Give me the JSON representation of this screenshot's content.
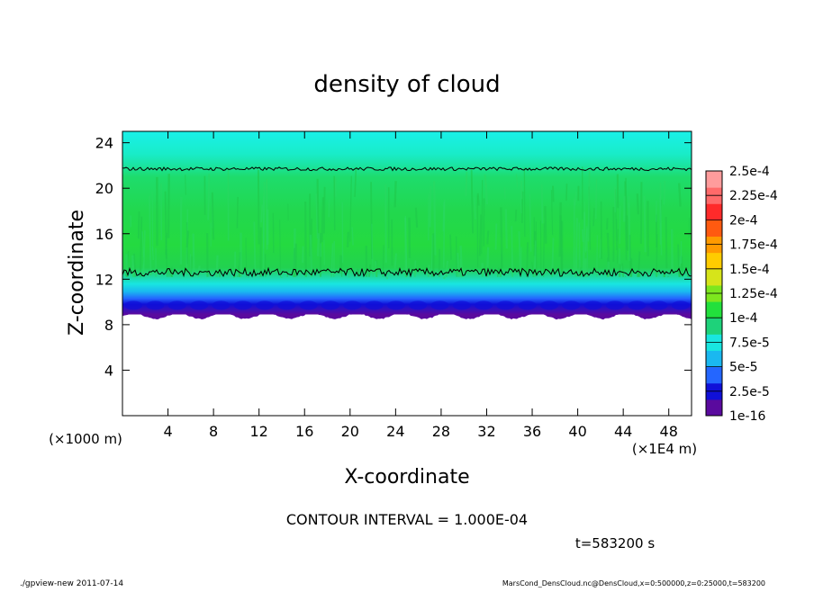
{
  "chart_data": {
    "type": "heatmap",
    "title": "density of cloud",
    "xlabel": "X-coordinate",
    "ylabel": "Z-coordinate",
    "x_unit_left": "(×1000 m)",
    "x_unit_right": "(×1E4 m)",
    "xlim": [
      0,
      50
    ],
    "ylim": [
      0,
      25
    ],
    "xticks": [
      4,
      8,
      12,
      16,
      20,
      24,
      28,
      32,
      36,
      40,
      44,
      48
    ],
    "yticks": [
      4,
      8,
      12,
      16,
      20,
      24
    ],
    "colorbar": {
      "levels": [
        "1e-16",
        "2.5e-5",
        "5e-5",
        "7.5e-5",
        "1e-4",
        "1.25e-4",
        "1.5e-4",
        "1.75e-4",
        "2e-4",
        "2.25e-4",
        "2.5e-4"
      ],
      "colors": [
        "#5a0a9e",
        "#1010d8",
        "#2466ff",
        "#1ab8f0",
        "#19e6e0",
        "#1ed27a",
        "#22e03c",
        "#7de61e",
        "#d6e41a",
        "#ffcc00",
        "#ff9a00",
        "#ff5a10",
        "#ff2a2a",
        "#ff6a6a",
        "#ff9c9c"
      ]
    },
    "profile": [
      {
        "z": 24.8,
        "color": "#19f0e6"
      },
      {
        "z": 23.0,
        "color": "#19ecc8"
      },
      {
        "z": 22.0,
        "color": "#1ae4a0"
      },
      {
        "z": 21.0,
        "color": "#1edc6c"
      },
      {
        "z": 18.0,
        "color": "#22d84e"
      },
      {
        "z": 15.0,
        "color": "#24da40"
      },
      {
        "z": 13.0,
        "color": "#22d250"
      },
      {
        "z": 12.2,
        "color": "#1ed8a0"
      },
      {
        "z": 11.6,
        "color": "#19e6e0"
      },
      {
        "z": 10.9,
        "color": "#1ab8f0"
      },
      {
        "z": 10.3,
        "color": "#2466ff"
      },
      {
        "z": 9.8,
        "color": "#1010d8"
      },
      {
        "z": 9.3,
        "color": "#3a10b8"
      },
      {
        "z": 8.9,
        "color": "#5a0a9e"
      }
    ],
    "contour_lines": [
      {
        "z": 21.7,
        "amplitude": 0.15
      },
      {
        "z": 12.6,
        "amplitude": 0.35
      }
    ],
    "contour_interval": "CONTOUR INTERVAL = 1.000E-04",
    "time": "t=583200 s"
  },
  "footer": {
    "left": "./gpview-new  2011-07-14",
    "right": "MarsCond_DensCloud.nc@DensCloud,x=0:500000,z=0:25000,t=583200"
  }
}
